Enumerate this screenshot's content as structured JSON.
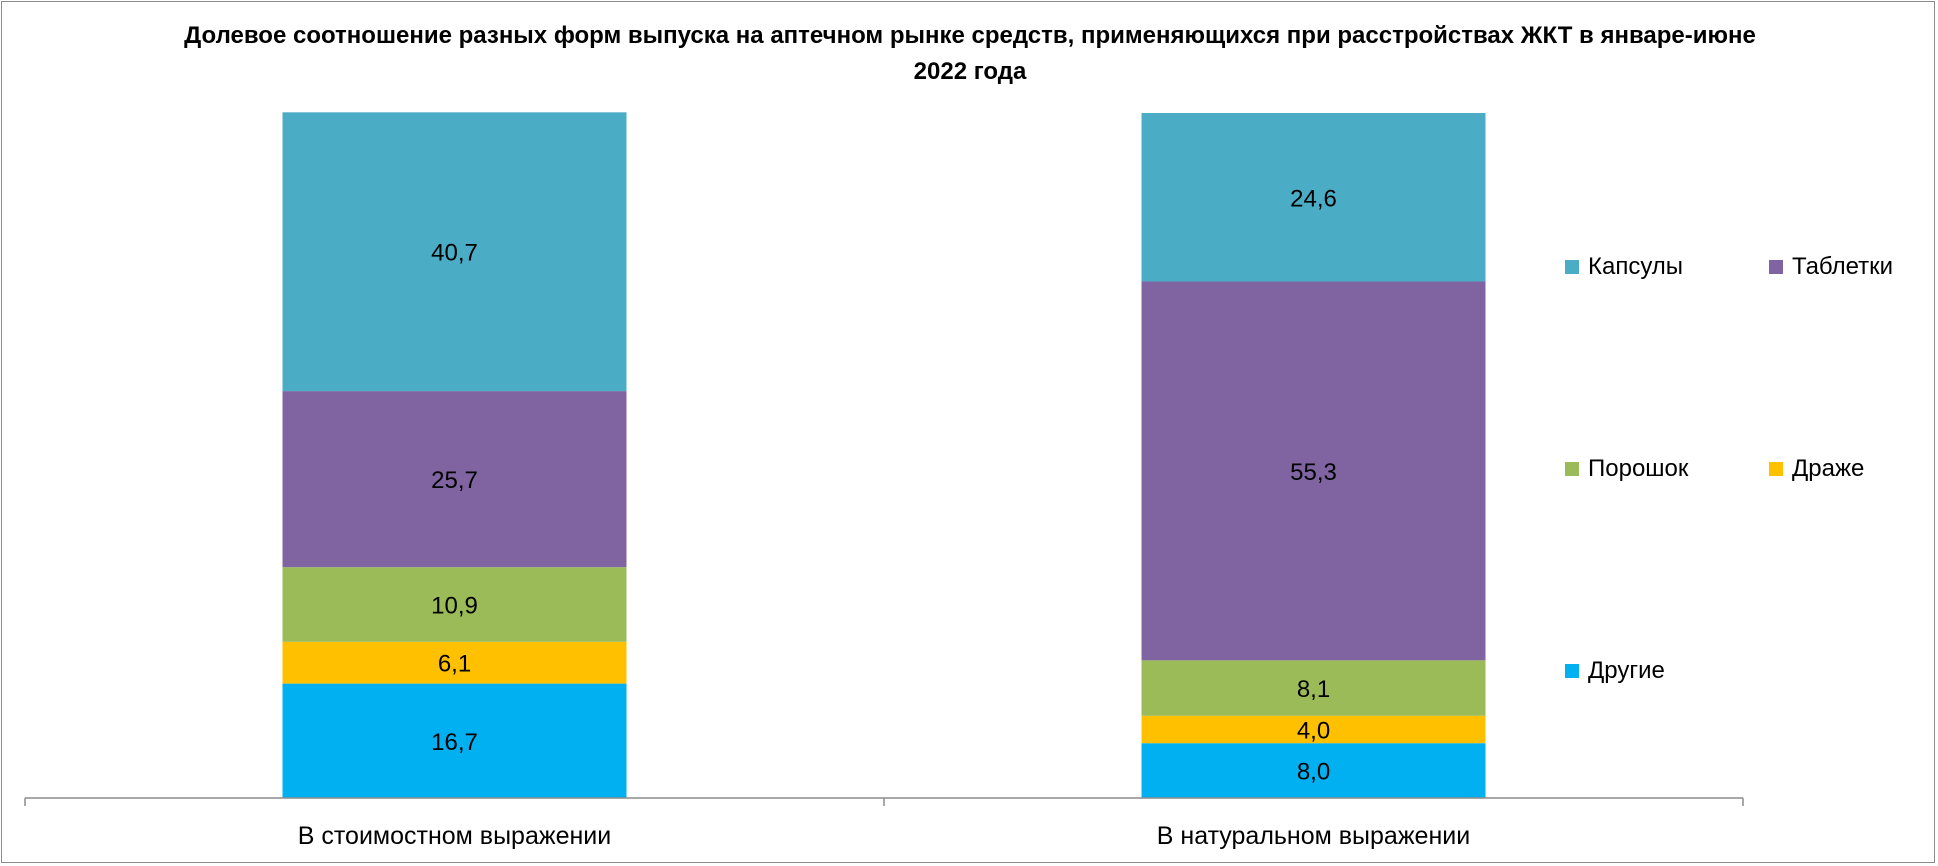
{
  "chart_data": {
    "type": "bar",
    "stacked": true,
    "title": "Долевое соотношение разных форм выпуска на аптечном рынке средств, применяющихся  при расстройствах ЖКТ в январе-июне 2022 года",
    "categories": [
      "В стоимостном выражении",
      "В натуральном выражении"
    ],
    "series": [
      {
        "name": "Другие",
        "color": "#00b0f0",
        "values": [
          16.7,
          8.0
        ],
        "labels": [
          "16,7",
          "8,0"
        ]
      },
      {
        "name": "Драже",
        "color": "#ffc000",
        "values": [
          6.1,
          4.0
        ],
        "labels": [
          "6,1",
          "4,0"
        ]
      },
      {
        "name": "Порошок",
        "color": "#9bbb59",
        "values": [
          10.9,
          8.1
        ],
        "labels": [
          "10,9",
          "8,1"
        ]
      },
      {
        "name": "Таблетки",
        "color": "#8064a2",
        "values": [
          25.7,
          55.3
        ],
        "labels": [
          "25,7",
          "55,3"
        ]
      },
      {
        "name": "Капсулы",
        "color": "#4bacc6",
        "values": [
          40.7,
          24.6
        ],
        "labels": [
          "40,7",
          "24,6"
        ]
      }
    ],
    "ylim": [
      0,
      100
    ],
    "grid": false,
    "legend": "right",
    "legend_order": [
      "Капсулы",
      "Таблетки",
      "Порошок",
      "Драже",
      "Другие"
    ]
  }
}
